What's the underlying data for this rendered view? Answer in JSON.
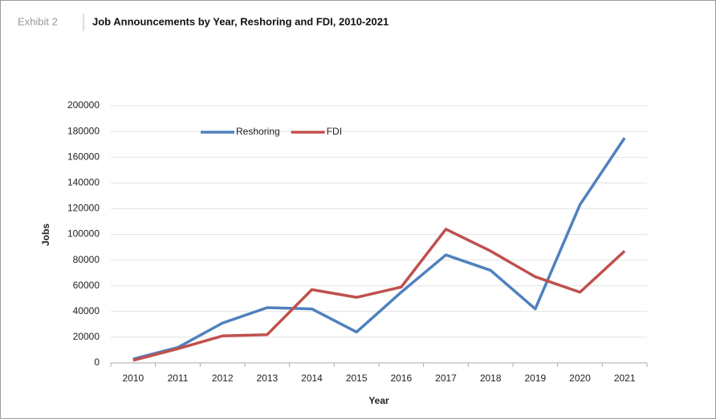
{
  "chart_data": {
    "type": "line",
    "label": "Exhibit 2",
    "title": "Job Announcements by Year, Reshoring and FDI, 2010-2021",
    "x_label": "Year",
    "y_label": "Jobs",
    "categories": [
      "2010",
      "2011",
      "2012",
      "2013",
      "2014",
      "2015",
      "2016",
      "2017",
      "2018",
      "2019",
      "2020",
      "2021"
    ],
    "series": [
      {
        "name": "Reshoring",
        "color": "#4f81bd",
        "values": [
          3000,
          12000,
          31000,
          43000,
          42000,
          24000,
          55000,
          84000,
          72000,
          42000,
          123000,
          175000
        ]
      },
      {
        "name": "FDI",
        "color": "#c0504d",
        "values": [
          2000,
          11000,
          21000,
          22000,
          57000,
          51000,
          59000,
          104000,
          87000,
          67000,
          55000,
          87000
        ]
      }
    ],
    "ylim": [
      0,
      200000
    ],
    "yticks": [
      0,
      20000,
      40000,
      60000,
      80000,
      100000,
      120000,
      140000,
      160000,
      180000,
      200000
    ],
    "grid": true,
    "legend": "top"
  }
}
